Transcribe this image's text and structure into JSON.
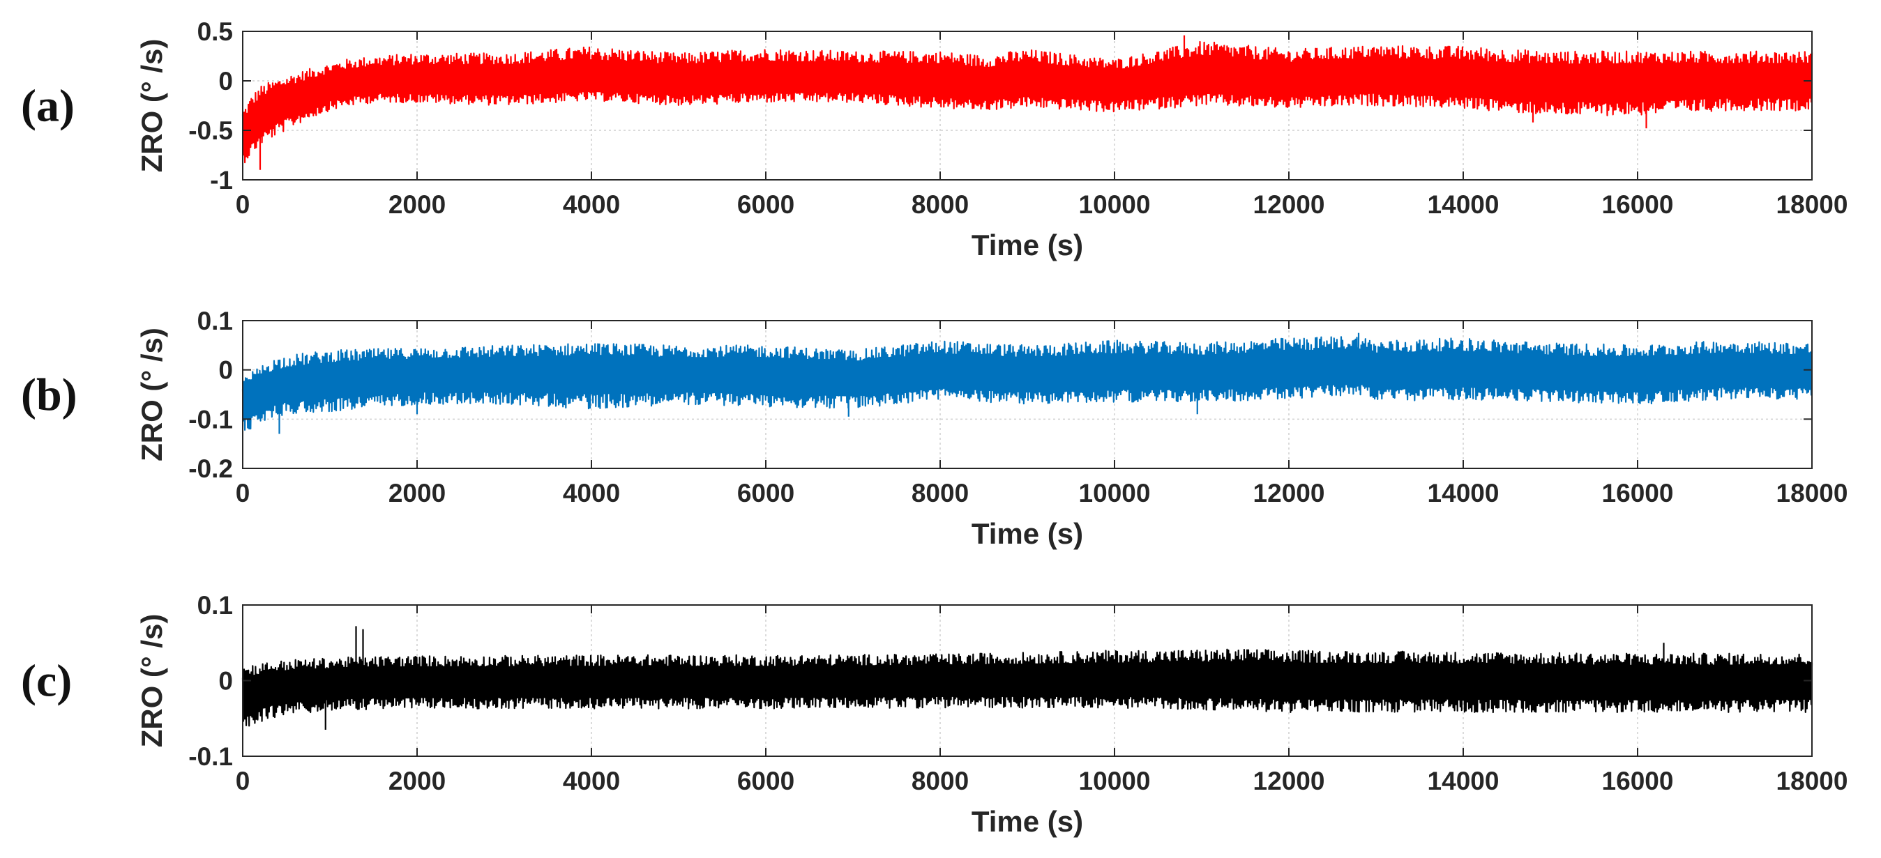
{
  "colors": {
    "a": "#ff0000",
    "b": "#0072bd",
    "c": "#000000",
    "grid": "#cfcfcf",
    "axis": "#262626"
  },
  "chart_data": [
    {
      "type": "line",
      "panel_label": "(a)",
      "xlabel": "Time (s)",
      "ylabel": "ZRO (° /s)",
      "xlim": [
        0,
        18000
      ],
      "ylim": [
        -1,
        0.5
      ],
      "xticks": [
        "0",
        "2000",
        "4000",
        "6000",
        "8000",
        "10000",
        "12000",
        "14000",
        "16000",
        "18000"
      ],
      "yticks": [
        "0.5",
        "0",
        "-0.5",
        "-1"
      ],
      "grid": true,
      "color": "#ff0000",
      "series": [
        {
          "x": [
            0,
            100,
            200,
            400,
            600,
            800,
            1000,
            1200,
            1500,
            2000,
            3000,
            4000,
            5000,
            6000,
            7000,
            8000,
            8500,
            9000,
            10000,
            11000,
            12000,
            13000,
            14000,
            15000,
            16000,
            17000,
            18000
          ],
          "mean": [
            -0.55,
            -0.45,
            -0.35,
            -0.25,
            -0.18,
            -0.12,
            -0.07,
            -0.03,
            0,
            0,
            0,
            0.02,
            0,
            0.02,
            0.02,
            0,
            -0.05,
            0,
            -0.05,
            0.05,
            0,
            0.05,
            0,
            -0.02,
            0,
            0,
            0
          ],
          "upper": [
            -0.3,
            -0.15,
            -0.05,
            0.02,
            0.08,
            0.13,
            0.18,
            0.22,
            0.25,
            0.28,
            0.28,
            0.35,
            0.28,
            0.33,
            0.3,
            0.3,
            0.26,
            0.32,
            0.22,
            0.4,
            0.32,
            0.36,
            0.35,
            0.3,
            0.3,
            0.3,
            0.3
          ],
          "lower": [
            -0.85,
            -0.75,
            -0.65,
            -0.55,
            -0.45,
            -0.37,
            -0.3,
            -0.26,
            -0.22,
            -0.22,
            -0.25,
            -0.2,
            -0.25,
            -0.22,
            -0.22,
            -0.28,
            -0.3,
            -0.27,
            -0.32,
            -0.25,
            -0.28,
            -0.25,
            -0.28,
            -0.35,
            -0.35,
            -0.3,
            -0.3
          ],
          "spikes": [
            [
              10800,
              0.46
            ],
            [
              16100,
              -0.48
            ],
            [
              14800,
              -0.42
            ],
            [
              200,
              -0.9
            ]
          ]
        }
      ]
    },
    {
      "type": "line",
      "panel_label": "(b)",
      "xlabel": "Time (s)",
      "ylabel": "ZRO (° /s)",
      "xlim": [
        0,
        18000
      ],
      "ylim": [
        -0.2,
        0.1
      ],
      "xticks": [
        "0",
        "2000",
        "4000",
        "6000",
        "8000",
        "10000",
        "12000",
        "14000",
        "16000",
        "18000"
      ],
      "yticks": [
        "0.1",
        "0",
        "-0.1",
        "-0.2"
      ],
      "grid": true,
      "color": "#0072bd",
      "series": [
        {
          "x": [
            0,
            100,
            300,
            500,
            1000,
            2000,
            3000,
            4000,
            5000,
            6000,
            7000,
            8000,
            9000,
            10000,
            11000,
            12000,
            12800,
            13000,
            14000,
            15000,
            16000,
            17000,
            18000
          ],
          "mean": [
            -0.07,
            -0.055,
            -0.04,
            -0.03,
            -0.02,
            -0.01,
            -0.01,
            -0.005,
            -0.01,
            -0.01,
            -0.015,
            -0.005,
            -0.01,
            -0.005,
            -0.005,
            0,
            0.005,
            -0.005,
            0,
            -0.005,
            -0.01,
            0,
            -0.005
          ],
          "upper": [
            -0.02,
            -0.005,
            0.02,
            0.03,
            0.04,
            0.045,
            0.05,
            0.055,
            0.05,
            0.05,
            0.04,
            0.06,
            0.05,
            0.06,
            0.055,
            0.065,
            0.07,
            0.06,
            0.065,
            0.055,
            0.05,
            0.06,
            0.055
          ],
          "lower": [
            -0.13,
            -0.12,
            -0.1,
            -0.09,
            -0.085,
            -0.07,
            -0.07,
            -0.08,
            -0.07,
            -0.075,
            -0.08,
            -0.06,
            -0.07,
            -0.065,
            -0.065,
            -0.06,
            -0.05,
            -0.065,
            -0.06,
            -0.065,
            -0.07,
            -0.06,
            -0.06
          ],
          "spikes": [
            [
              420,
              -0.13
            ],
            [
              6950,
              -0.095
            ],
            [
              10950,
              -0.09
            ],
            [
              2000,
              -0.09
            ],
            [
              12800,
              0.075
            ]
          ]
        }
      ]
    },
    {
      "type": "line",
      "panel_label": "(c)",
      "xlabel": "Time (s)",
      "ylabel": "ZRO (° /s)",
      "xlim": [
        0,
        18000
      ],
      "ylim": [
        -0.1,
        0.1
      ],
      "xticks": [
        "0",
        "2000",
        "4000",
        "6000",
        "8000",
        "10000",
        "12000",
        "14000",
        "16000",
        "18000"
      ],
      "yticks": [
        "0.1",
        "0",
        "-0.1"
      ],
      "grid": true,
      "color": "#000000",
      "series": [
        {
          "x": [
            0,
            100,
            300,
            600,
            1000,
            1500,
            2000,
            3000,
            4000,
            6000,
            8000,
            10000,
            11500,
            12000,
            14000,
            16000,
            18000
          ],
          "mean": [
            -0.02,
            -0.015,
            -0.01,
            -0.005,
            -0.003,
            -0.002,
            -0.002,
            -0.002,
            -0.002,
            -0.002,
            0,
            0,
            0,
            0,
            0,
            -0.002,
            0
          ],
          "upper": [
            0.02,
            0.022,
            0.025,
            0.028,
            0.03,
            0.032,
            0.033,
            0.033,
            0.034,
            0.034,
            0.035,
            0.04,
            0.042,
            0.04,
            0.038,
            0.036,
            0.036
          ],
          "lower": [
            -0.065,
            -0.06,
            -0.05,
            -0.045,
            -0.04,
            -0.038,
            -0.037,
            -0.037,
            -0.037,
            -0.037,
            -0.036,
            -0.036,
            -0.04,
            -0.042,
            -0.042,
            -0.042,
            -0.042
          ],
          "spikes": [
            [
              1300,
              0.072
            ],
            [
              1380,
              0.068
            ],
            [
              950,
              -0.065
            ],
            [
              16300,
              0.05
            ]
          ]
        }
      ]
    }
  ]
}
